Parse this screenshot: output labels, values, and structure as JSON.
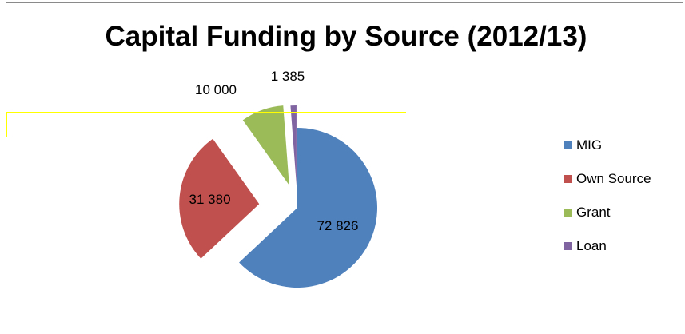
{
  "chart_data": {
    "type": "pie",
    "title": "Capital Funding by Source (2012/13)",
    "categories": [
      "MIG",
      "Own  Source",
      "Grant",
      "Loan"
    ],
    "values": [
      72826,
      31380,
      10000,
      1385
    ],
    "value_labels": [
      "72 826",
      "31 380",
      "10 000",
      "1 385"
    ],
    "colors": [
      "#4f81bd",
      "#c0504d",
      "#9bbb59",
      "#8064a2"
    ],
    "exploded": true,
    "legend_position": "right"
  }
}
